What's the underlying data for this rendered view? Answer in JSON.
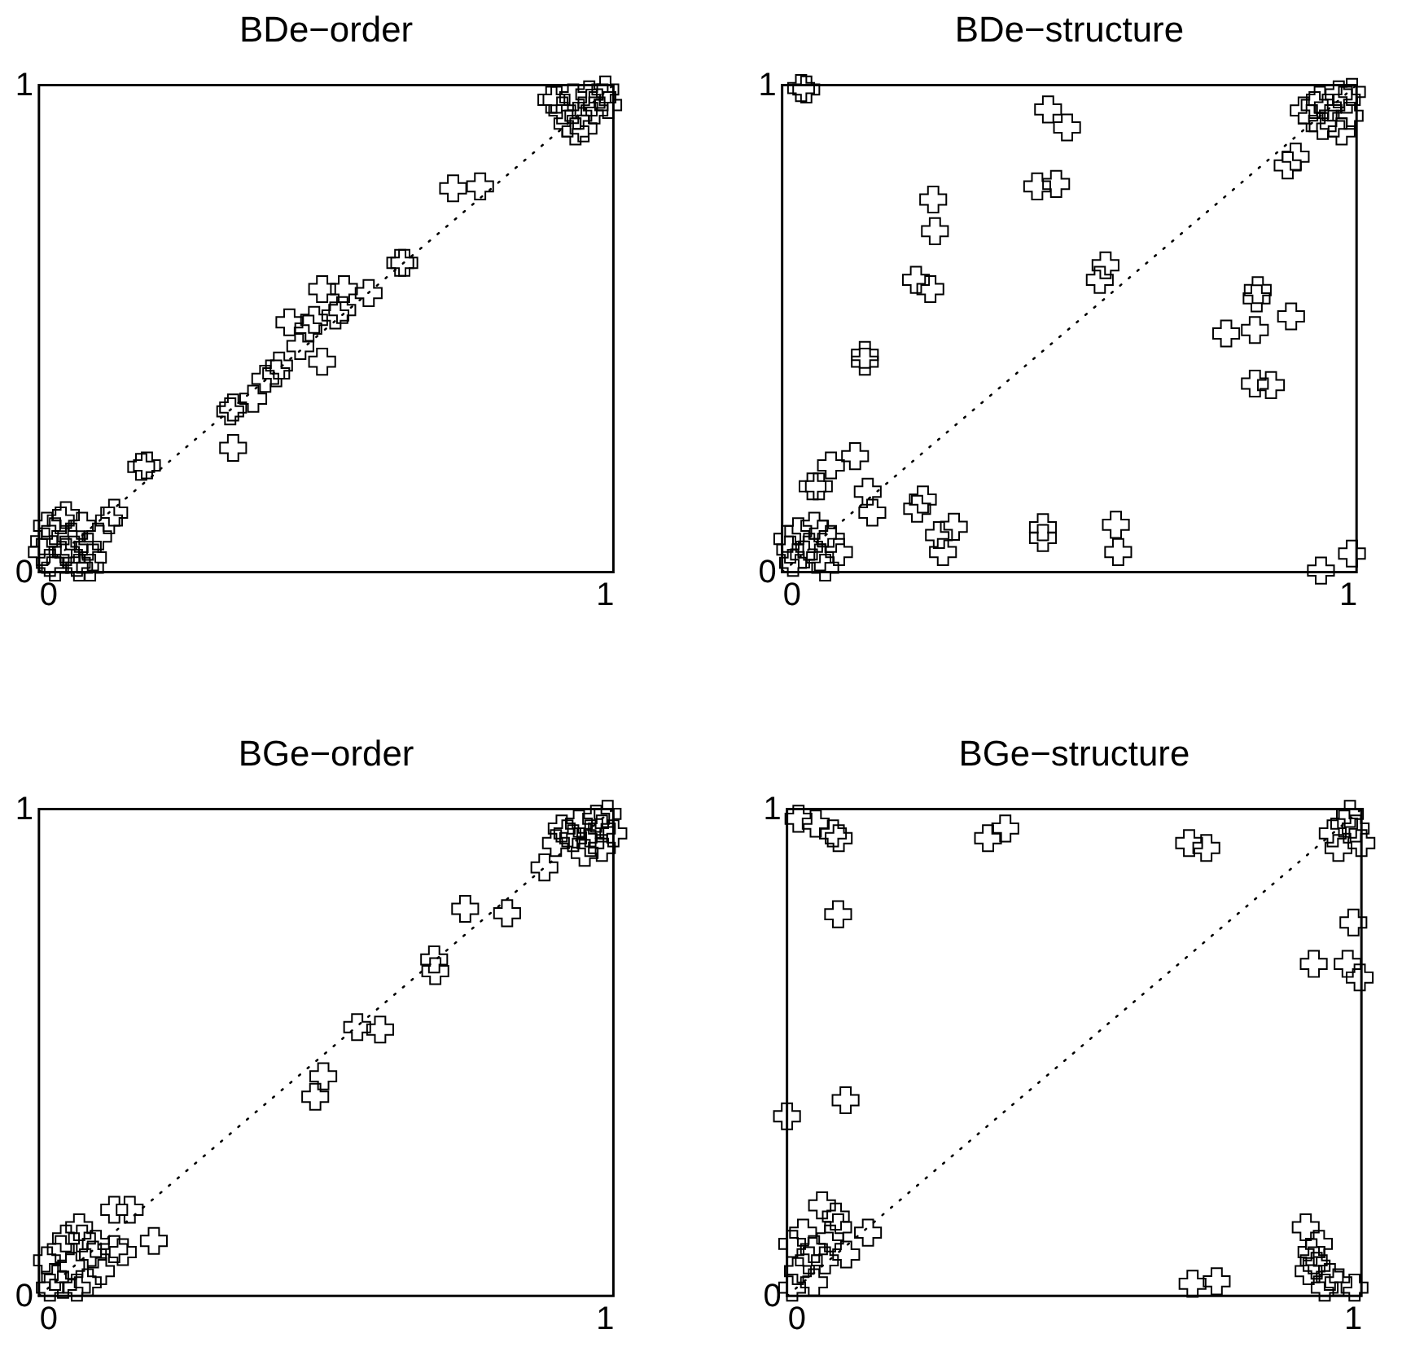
{
  "chart_data": [
    {
      "type": "scatter",
      "title": "BDe−order",
      "xlim": [
        0,
        1
      ],
      "ylim": [
        0,
        1
      ],
      "xticks": [
        0,
        1
      ],
      "yticks": [
        0,
        1
      ],
      "grid": false,
      "marker": "cross",
      "series": [
        {
          "color": "#000000",
          "x": [
            0.178,
            0.188,
            0.338,
            0.333,
            0.338,
            0.373,
            0.394,
            0.418,
            0.413,
            0.455,
            0.436,
            0.469,
            0.479,
            0.493,
            0.493,
            0.516,
            0.528,
            0.531,
            0.574,
            0.629,
            0.636,
            0.721,
            0.768,
            0.901,
            0.93,
            0.958,
            0.981,
            0.991,
            0.939,
            0.92,
            0.911,
            0.967,
            0.948,
            0.892,
            0.986,
            0.962,
            0.934,
            0.009,
            0.028,
            0.047,
            0.066,
            0.085,
            0.019,
            0.038,
            0.075,
            0.094,
            0.122,
            0.131,
            0.056,
            0.005,
            0.028,
            0.103,
            0.07,
            0.047,
            0.014,
            0.089,
            0.061
          ],
          "values": [
            0.216,
            0.219,
            0.338,
            0.33,
            0.255,
            0.356,
            0.397,
            0.424,
            0.408,
            0.464,
            0.513,
            0.5,
            0.518,
            0.432,
            0.581,
            0.527,
            0.538,
            0.581,
            0.573,
            0.635,
            0.635,
            0.788,
            0.792,
            0.97,
            0.975,
            0.981,
            0.975,
            0.959,
            0.937,
            0.921,
            0.948,
            0.948,
            0.911,
            0.97,
            0.991,
            0.964,
            0.905,
            0.063,
            0.084,
            0.041,
            0.019,
            0.052,
            0.019,
            0.106,
            0.095,
            0.03,
            0.106,
            0.122,
            0.073,
            0.041,
            0.009,
            0.073,
            0.009,
            0.117,
            0.095,
            0.009,
            0.046
          ]
        },
        {
          "type": "line",
          "marker": "none",
          "line_style": "dotted",
          "color": "#000000",
          "x": [
            0,
            1
          ],
          "values": [
            0,
            1
          ]
        }
      ]
    },
    {
      "type": "scatter",
      "title": "BDe−structure",
      "xlim": [
        0,
        1
      ],
      "ylim": [
        0,
        1
      ],
      "xticks": [
        0,
        1
      ],
      "yticks": [
        0,
        1
      ],
      "grid": false,
      "marker": "cross",
      "series": [
        {
          "color": "#000000",
          "x": [
            0.033,
            0.042,
            0.463,
            0.496,
            0.444,
            0.477,
            0.263,
            0.266,
            0.233,
            0.258,
            0.144,
            0.144,
            0.563,
            0.553,
            0.828,
            0.826,
            0.886,
            0.773,
            0.823,
            0.823,
            0.851,
            0.127,
            0.085,
            0.064,
            0.053,
            0.149,
            0.157,
            0.245,
            0.235,
            0.299,
            0.28,
            0.273,
            0.454,
            0.454,
            0.581,
            0.585,
            0.938,
            0.992,
            0.88,
            0.894,
            0.908,
            0.922,
            0.936,
            0.95,
            0.96,
            0.974,
            0.983,
            0.992,
            0.941,
            0.969,
            0.988,
            0.927,
            0.009,
            0.028,
            0.047,
            0.066,
            0.085,
            0.019,
            0.056,
            0.075,
            0.038,
            0.099,
            0.014,
            0.071
          ],
          "values": [
            0.994,
            0.991,
            0.95,
            0.913,
            0.792,
            0.797,
            0.765,
            0.7,
            0.6,
            0.581,
            0.446,
            0.432,
            0.63,
            0.6,
            0.579,
            0.562,
            0.525,
            0.49,
            0.497,
            0.387,
            0.384,
            0.238,
            0.219,
            0.176,
            0.176,
            0.165,
            0.122,
            0.149,
            0.13,
            0.093,
            0.041,
            0.076,
            0.092,
            0.07,
            0.097,
            0.041,
            0.003,
            0.038,
            0.835,
            0.853,
            0.948,
            0.932,
            0.97,
            0.954,
            0.921,
            0.905,
            0.97,
            0.986,
            0.916,
            0.981,
            0.937,
            0.959,
            0.068,
            0.084,
            0.052,
            0.03,
            0.068,
            0.019,
            0.095,
            0.009,
            0.036,
            0.041,
            0.046,
            0.079
          ]
        },
        {
          "type": "line",
          "marker": "none",
          "line_style": "dotted",
          "color": "#000000",
          "x": [
            0,
            1
          ],
          "values": [
            0,
            1
          ]
        }
      ]
    },
    {
      "type": "scatter",
      "title": "BGe−order",
      "xlim": [
        0,
        1
      ],
      "ylim": [
        0,
        1
      ],
      "xticks": [
        0,
        1
      ],
      "yticks": [
        0,
        1
      ],
      "grid": false,
      "marker": "cross",
      "series": [
        {
          "color": "#000000",
          "x": [
            0.815,
            0.742,
            0.688,
            0.69,
            0.554,
            0.594,
            0.495,
            0.481,
            0.158,
            0.131,
            0.2,
            0.88,
            0.9,
            0.92,
            0.94,
            0.96,
            0.98,
            0.99,
            0.95,
            0.93,
            0.97,
            1.0,
            0.91,
            0.96,
            0.98,
            0.014,
            0.038,
            0.056,
            0.075,
            0.094,
            0.028,
            0.066,
            0.108,
            0.047,
            0.131,
            0.019,
            0.085,
            0.07,
            0.099,
            0.042,
            0.146
          ],
          "values": [
            0.786,
            0.795,
            0.691,
            0.667,
            0.552,
            0.547,
            0.451,
            0.409,
            0.177,
            0.177,
            0.113,
            0.88,
            0.93,
            0.95,
            0.97,
            0.93,
            0.96,
            0.99,
            0.91,
            0.94,
            0.98,
            0.95,
            0.96,
            0.95,
            0.92,
            0.073,
            0.096,
            0.062,
            0.118,
            0.085,
            0.039,
            0.017,
            0.051,
            0.118,
            0.096,
            0.017,
            0.028,
            0.141,
            0.107,
            0.023,
            0.09
          ]
        },
        {
          "type": "line",
          "marker": "none",
          "line_style": "dotted",
          "color": "#000000",
          "x": [
            0,
            1
          ],
          "values": [
            0,
            1
          ]
        }
      ]
    },
    {
      "type": "scatter",
      "title": "BGe−structure",
      "xlim": [
        0,
        1
      ],
      "ylim": [
        0,
        1
      ],
      "xticks": [
        0,
        1
      ],
      "yticks": [
        0,
        1
      ],
      "grid": false,
      "marker": "cross",
      "series": [
        {
          "color": "#000000",
          "x": [
            0.089,
            0.102,
            0.0,
            0.917,
            0.976,
            0.997,
            0.986,
            0.706,
            0.748,
            0.903,
            0.913,
            0.922,
            0.908,
            0.936,
            0.96,
            0.988,
            0.926,
            0.945,
            0.917,
            0.009,
            0.028,
            0.047,
            0.066,
            0.085,
            0.061,
            0.089,
            0.019,
            0.047,
            0.103,
            0.141,
            0.009,
            0.075,
            0.038,
            0.02,
            0.05,
            0.08,
            0.09,
            0.35,
            0.38,
            0.7,
            0.73,
            0.95,
            0.97,
            0.99,
            0.96,
            0.98,
            1.0
          ],
          "values": [
            0.784,
            0.402,
            0.369,
            0.682,
            0.682,
            0.654,
            0.767,
            0.025,
            0.03,
            0.141,
            0.09,
            0.062,
            0.051,
            0.017,
            0.028,
            0.017,
            0.107,
            0.039,
            0.073,
            0.107,
            0.13,
            0.096,
            0.073,
            0.163,
            0.186,
            0.141,
            0.051,
            0.028,
            0.085,
            0.13,
            0.017,
            0.118,
            0.073,
            0.98,
            0.97,
            0.95,
            0.94,
            0.94,
            0.96,
            0.93,
            0.92,
            0.95,
            0.97,
            0.96,
            0.92,
            0.99,
            0.93
          ]
        },
        {
          "type": "line",
          "marker": "none",
          "line_style": "dotted",
          "color": "#000000",
          "x": [
            0,
            1
          ],
          "values": [
            0,
            1
          ]
        }
      ]
    }
  ]
}
